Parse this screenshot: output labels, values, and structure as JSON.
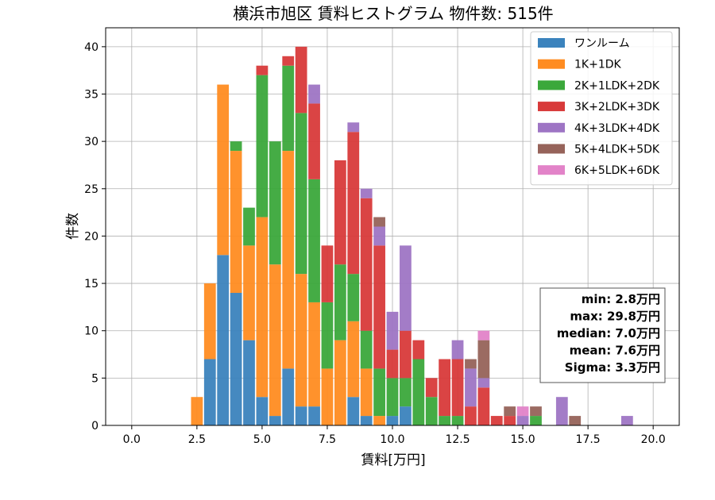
{
  "chart_data": {
    "type": "bar",
    "stacked": true,
    "title": "横浜市旭区 賃料ヒストグラム 物件数: 515件",
    "xlabel": "賃料[万円]",
    "ylabel": "件数",
    "xlim": [
      -1,
      21
    ],
    "ylim": [
      0,
      42
    ],
    "xticks": [
      "0.0",
      "2.5",
      "5.0",
      "7.5",
      "10.0",
      "12.5",
      "15.0",
      "17.5",
      "20.0"
    ],
    "yticks": [
      "0",
      "5",
      "10",
      "15",
      "20",
      "25",
      "30",
      "35",
      "40"
    ],
    "grid": true,
    "legend_position": "top-right",
    "bin_width": 0.5,
    "x": [
      2.5,
      3.0,
      3.5,
      4.0,
      4.5,
      5.0,
      5.5,
      6.0,
      6.5,
      7.0,
      7.5,
      8.0,
      8.5,
      9.0,
      9.5,
      10.0,
      10.5,
      11.0,
      11.5,
      12.0,
      12.5,
      13.0,
      13.5,
      14.0,
      14.5,
      15.0,
      15.5,
      16.0,
      16.5,
      17.0,
      17.5,
      18.0,
      18.5,
      19.0,
      19.5
    ],
    "series": [
      {
        "name": "ワンルーム",
        "color": "#3b83bd",
        "values": [
          0,
          7,
          18,
          14,
          9,
          3,
          1,
          6,
          2,
          2,
          0,
          0,
          3,
          1,
          0,
          1,
          2,
          0,
          0,
          0,
          0,
          0,
          0,
          0,
          0,
          0,
          0,
          0,
          0,
          0,
          0,
          0,
          0,
          0,
          0
        ]
      },
      {
        "name": "1K+1DK",
        "color": "#ff8c21",
        "values": [
          3,
          8,
          18,
          15,
          10,
          19,
          16,
          23,
          14,
          11,
          6,
          9,
          8,
          5,
          1,
          0,
          0,
          0,
          0,
          0,
          0,
          0,
          0,
          0,
          0,
          0,
          0,
          0,
          0,
          0,
          0,
          0,
          0,
          0,
          0
        ]
      },
      {
        "name": "2K+1LDK+2DK",
        "color": "#3ba83b",
        "values": [
          0,
          0,
          0,
          1,
          4,
          15,
          13,
          9,
          17,
          13,
          7,
          8,
          5,
          4,
          5,
          4,
          3,
          7,
          3,
          1,
          1,
          0,
          0,
          0,
          0,
          0,
          1,
          0,
          0,
          0,
          0,
          0,
          0,
          0,
          0
        ]
      },
      {
        "name": "3K+2LDK+3DK",
        "color": "#d83a3a",
        "values": [
          0,
          0,
          0,
          0,
          0,
          1,
          0,
          1,
          7,
          8,
          6,
          11,
          15,
          14,
          13,
          3,
          5,
          2,
          2,
          6,
          6,
          2,
          4,
          1,
          1,
          0,
          0,
          0,
          0,
          0,
          0,
          0,
          0,
          0,
          0
        ]
      },
      {
        "name": "4K+3LDK+4DK",
        "color": "#9e75c4",
        "values": [
          0,
          0,
          0,
          0,
          0,
          0,
          0,
          0,
          0,
          2,
          0,
          0,
          1,
          1,
          2,
          4,
          9,
          0,
          0,
          0,
          2,
          4,
          1,
          0,
          0,
          1,
          0,
          0,
          3,
          0,
          0,
          0,
          0,
          1,
          0
        ]
      },
      {
        "name": "5K+4LDK+5DK",
        "color": "#96635a",
        "values": [
          0,
          0,
          0,
          0,
          0,
          0,
          0,
          0,
          0,
          0,
          0,
          0,
          0,
          0,
          1,
          0,
          0,
          0,
          0,
          0,
          0,
          1,
          4,
          0,
          1,
          0,
          1,
          0,
          0,
          1,
          0,
          0,
          0,
          0,
          0
        ]
      },
      {
        "name": "6K+5LDK+6DK",
        "color": "#e283c8",
        "values": [
          0,
          0,
          0,
          0,
          0,
          0,
          0,
          0,
          0,
          0,
          0,
          0,
          0,
          0,
          0,
          0,
          0,
          0,
          0,
          0,
          0,
          0,
          1,
          0,
          0,
          1,
          0,
          0,
          0,
          0,
          0,
          0,
          0,
          0,
          0
        ]
      }
    ],
    "stats": [
      "min: 2.8万円",
      "max: 29.8万円",
      "median: 7.0万円",
      "mean: 7.6万円",
      "Sigma: 3.3万円"
    ]
  }
}
